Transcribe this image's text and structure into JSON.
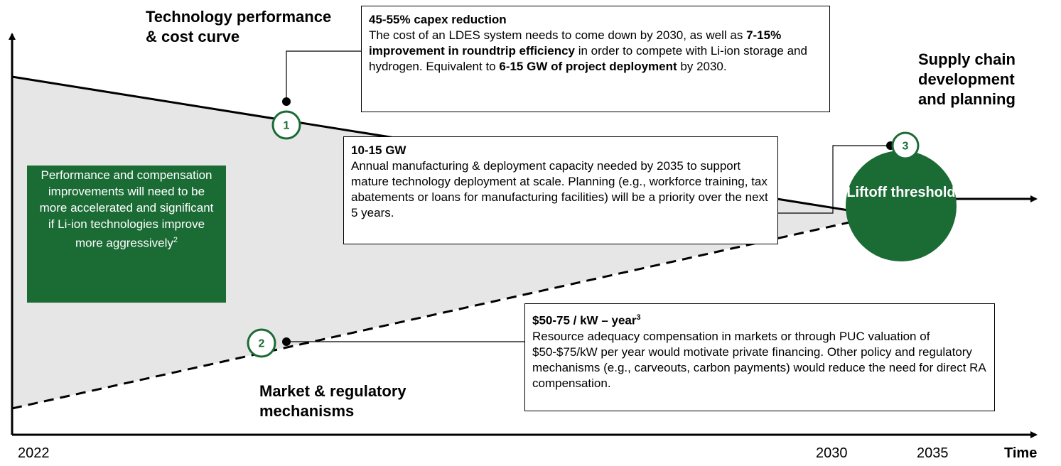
{
  "labels": {
    "technology": "Technology performance & cost curve",
    "supply": "Supply chain development and planning",
    "market": "Market & regulatory mechanisms"
  },
  "callouts": [
    {
      "number": "1",
      "title": "45-55% capex reduction",
      "title_superscript": null,
      "body": [
        {
          "text": "The cost of an LDES system needs to come down by 2030, as well as ",
          "bold": false
        },
        {
          "text": "7-15% improvement in roundtrip efficiency",
          "bold": true
        },
        {
          "text": " in order to compete with Li-ion storage and hydrogen. Equivalent to ",
          "bold": false
        },
        {
          "text": "6-15 GW of project deployment",
          "bold": true
        },
        {
          "text": " by 2030.",
          "bold": false
        }
      ]
    },
    {
      "number": "2",
      "title": "$50-75 / kW – year",
      "title_superscript": "3",
      "body": [
        {
          "text": "Resource adequacy compensation in markets or through PUC valuation of $50-$75/kW per year would motivate private financing. Other policy and regulatory mechanisms (e.g., carveouts, carbon payments) would reduce the need for direct RA compensation.",
          "bold": false
        }
      ]
    },
    {
      "number": "3",
      "title": "10-15 GW",
      "title_superscript": null,
      "body": [
        {
          "text": "Annual manufacturing & deployment capacity needed by 2035 to support mature technology deployment at scale. Planning (e.g., workforce training, tax abatements or loans for manufacturing facilities) will be a priority over the next 5 years.",
          "bold": false
        }
      ]
    }
  ],
  "liftoff": "Liftoff threshold",
  "note": {
    "text": "Performance and compensation improvements will need to be more accelerated and significant if Li-ion technologies improve more aggressively",
    "superscript": "2"
  },
  "x_axis": {
    "labels": [
      "2022",
      "2030",
      "2035"
    ],
    "title": "Time"
  }
}
